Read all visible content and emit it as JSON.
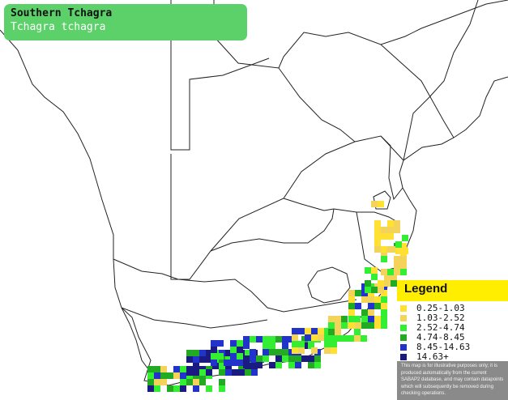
{
  "title": {
    "common_name": "Southern Tchagra",
    "scientific_name": "Tchagra tchagra"
  },
  "legend": {
    "heading": "Legend",
    "items": [
      {
        "label": "0.25-1.03",
        "color": "#ffe033"
      },
      {
        "label": "1.03-2.52",
        "color": "#f4d35a"
      },
      {
        "label": "2.52-4.74",
        "color": "#33ee33"
      },
      {
        "label": "4.74-8.45",
        "color": "#22aa22"
      },
      {
        "label": "8.45-14.63",
        "color": "#2233cc"
      },
      {
        "label": "14.63+",
        "color": "#1a1a80"
      }
    ],
    "disclaimer": "This map is for illustrative purposes only; it is produced automatically from the current SABAP2 database, and may contain datapoints which will subsequently be removed during checking operations."
  },
  "map": {
    "border_color": "#222222",
    "land_color": "#ffffff"
  }
}
